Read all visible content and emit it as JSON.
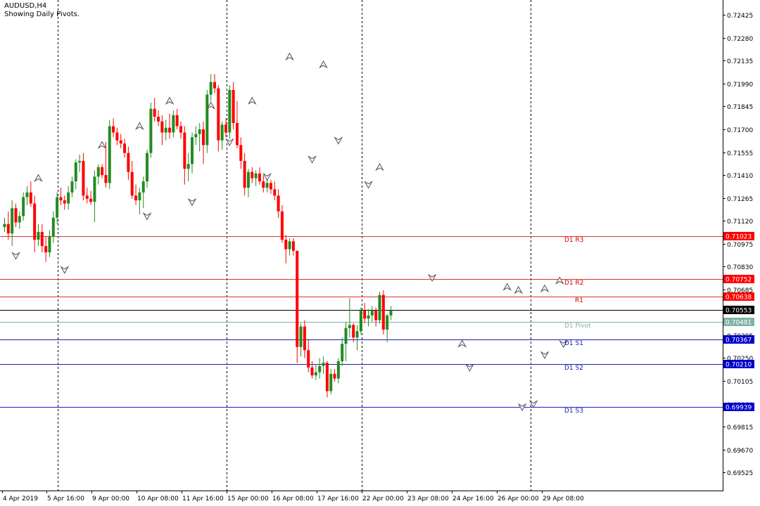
{
  "header": {
    "symbol": "AUDUSD,H4",
    "subtitle": "Showing Daily Pivots."
  },
  "colors": {
    "background": "#ffffff",
    "bull": "#228b22",
    "bear": "#ff0000",
    "resistance_line": "#e03030",
    "support_line": "#1a1acc",
    "pivot_line": "#7fb2a5",
    "price_line": "#000000",
    "grid_separator": "#000000",
    "resistance_label_bg": "#ff0000",
    "support_label_bg": "#0000cc",
    "pivot_label_bg": "#7fb2a5",
    "price_label_bg": "#000000",
    "fractal": "#505050"
  },
  "chart_data": {
    "type": "candlestick",
    "symbol": "AUDUSD",
    "timeframe": "H4",
    "ylim": [
      0.6941,
      0.7252
    ],
    "price_ticks": [
      "0.72425",
      "0.72280",
      "0.72135",
      "0.71990",
      "0.71845",
      "0.71700",
      "0.71555",
      "0.71410",
      "0.71265",
      "0.71120",
      "0.70975",
      "0.70830",
      "0.70685",
      "0.70395",
      "0.70250",
      "0.70105",
      "0.69960",
      "0.69815",
      "0.69670",
      "0.69525"
    ],
    "time_labels": [
      "4 Apr 2019",
      "5 Apr 16:00",
      "9 Apr 00:00",
      "10 Apr 08:00",
      "11 Apr 16:00",
      "15 Apr 00:00",
      "16 Apr 08:00",
      "17 Apr 16:00",
      "22 Apr 00:00",
      "23 Apr 08:00",
      "24 Apr 16:00",
      "26 Apr 00:00",
      "29 Apr 08:00"
    ],
    "day_separator_after_labels": [
      "5 Apr 16:00",
      "11 Apr 16:00",
      "17 Apr 16:00",
      "26 Apr 00:00"
    ],
    "current_price": "0.70553",
    "pivot_levels": [
      {
        "name": "D1 R3",
        "price": 0.71023,
        "label": "0.71023",
        "kind": "resistance"
      },
      {
        "name": "D1 R2",
        "price": 0.70752,
        "label": "0.70752",
        "kind": "resistance"
      },
      {
        "name": "R1",
        "price": 0.70638,
        "label": "0.70638",
        "kind": "resistance"
      },
      {
        "name": "D1 Pivot",
        "price": 0.70481,
        "label": "0.70481",
        "kind": "pivot"
      },
      {
        "name": "D1 S1",
        "price": 0.70367,
        "label": "0.70367",
        "kind": "support"
      },
      {
        "name": "D1 S2",
        "price": 0.7021,
        "label": "0.70210",
        "kind": "support"
      },
      {
        "name": "D1 S3",
        "price": 0.69939,
        "label": "0.69939",
        "kind": "support"
      }
    ],
    "candles": [
      [
        0.7108,
        0.7114,
        0.7105,
        0.711
      ],
      [
        0.711,
        0.7118,
        0.71,
        0.7104
      ],
      [
        0.7104,
        0.7125,
        0.7096,
        0.712
      ],
      [
        0.712,
        0.7123,
        0.7108,
        0.7111
      ],
      [
        0.7111,
        0.7118,
        0.7107,
        0.7115
      ],
      [
        0.7115,
        0.713,
        0.7112,
        0.7127
      ],
      [
        0.7127,
        0.7134,
        0.7122,
        0.713
      ],
      [
        0.713,
        0.7137,
        0.7121,
        0.7123
      ],
      [
        0.7123,
        0.7128,
        0.7092,
        0.71
      ],
      [
        0.71,
        0.711,
        0.7096,
        0.7105
      ],
      [
        0.7105,
        0.711,
        0.7092,
        0.7096
      ],
      [
        0.7096,
        0.7102,
        0.7086,
        0.7092
      ],
      [
        0.7092,
        0.7106,
        0.7089,
        0.7102
      ],
      [
        0.7102,
        0.7118,
        0.7098,
        0.7114
      ],
      [
        0.7114,
        0.713,
        0.711,
        0.7127
      ],
      [
        0.7127,
        0.7133,
        0.7122,
        0.7125
      ],
      [
        0.7125,
        0.7128,
        0.7119,
        0.7123
      ],
      [
        0.7123,
        0.7134,
        0.7119,
        0.713
      ],
      [
        0.713,
        0.714,
        0.7127,
        0.7137
      ],
      [
        0.7137,
        0.7151,
        0.7132,
        0.7149
      ],
      [
        0.7149,
        0.7154,
        0.7143,
        0.715
      ],
      [
        0.715,
        0.7155,
        0.7125,
        0.7128
      ],
      [
        0.7128,
        0.7133,
        0.7123,
        0.7126
      ],
      [
        0.7126,
        0.7131,
        0.7122,
        0.7124
      ],
      [
        0.7124,
        0.7144,
        0.7111,
        0.714
      ],
      [
        0.714,
        0.7148,
        0.7135,
        0.7146
      ],
      [
        0.7146,
        0.7148,
        0.7139,
        0.7141
      ],
      [
        0.7141,
        0.7162,
        0.7133,
        0.7136
      ],
      [
        0.7136,
        0.7176,
        0.7132,
        0.7172
      ],
      [
        0.7172,
        0.7177,
        0.7165,
        0.7168
      ],
      [
        0.7168,
        0.7171,
        0.716,
        0.7163
      ],
      [
        0.7163,
        0.7167,
        0.7158,
        0.7161
      ],
      [
        0.7161,
        0.7164,
        0.7152,
        0.7155
      ],
      [
        0.7155,
        0.7159,
        0.7138,
        0.7143
      ],
      [
        0.7143,
        0.715,
        0.7126,
        0.7128
      ],
      [
        0.7128,
        0.7135,
        0.7122,
        0.7125
      ],
      [
        0.7125,
        0.7133,
        0.7116,
        0.713
      ],
      [
        0.713,
        0.714,
        0.712,
        0.7137
      ],
      [
        0.7137,
        0.7157,
        0.7133,
        0.7155
      ],
      [
        0.7155,
        0.7187,
        0.7152,
        0.7183
      ],
      [
        0.7183,
        0.719,
        0.7175,
        0.7178
      ],
      [
        0.7178,
        0.7182,
        0.7172,
        0.7175
      ],
      [
        0.7175,
        0.7179,
        0.716,
        0.7168
      ],
      [
        0.7168,
        0.7176,
        0.7163,
        0.7171
      ],
      [
        0.7171,
        0.718,
        0.7164,
        0.7168
      ],
      [
        0.7168,
        0.7182,
        0.7165,
        0.7179
      ],
      [
        0.7179,
        0.7183,
        0.717,
        0.7172
      ],
      [
        0.7172,
        0.7175,
        0.7164,
        0.7168
      ],
      [
        0.7168,
        0.7172,
        0.7135,
        0.7145
      ],
      [
        0.7145,
        0.7155,
        0.7137,
        0.7148
      ],
      [
        0.7148,
        0.7168,
        0.7142,
        0.7165
      ],
      [
        0.7165,
        0.7172,
        0.716,
        0.7167
      ],
      [
        0.7167,
        0.7174,
        0.7156,
        0.717
      ],
      [
        0.717,
        0.7175,
        0.7148,
        0.716
      ],
      [
        0.716,
        0.7195,
        0.7155,
        0.7192
      ],
      [
        0.7192,
        0.7205,
        0.7188,
        0.72
      ],
      [
        0.72,
        0.7205,
        0.7193,
        0.7196
      ],
      [
        0.7196,
        0.7198,
        0.7156,
        0.7163
      ],
      [
        0.7163,
        0.7175,
        0.7157,
        0.7173
      ],
      [
        0.7173,
        0.7177,
        0.7165,
        0.7168
      ],
      [
        0.7168,
        0.7198,
        0.7164,
        0.7195
      ],
      [
        0.7195,
        0.72,
        0.717,
        0.7174
      ],
      [
        0.7174,
        0.7188,
        0.7158,
        0.716
      ],
      [
        0.716,
        0.7165,
        0.7145,
        0.715
      ],
      [
        0.715,
        0.7155,
        0.7128,
        0.7133
      ],
      [
        0.7133,
        0.7145,
        0.7127,
        0.7143
      ],
      [
        0.7143,
        0.7146,
        0.7136,
        0.7139
      ],
      [
        0.7139,
        0.7144,
        0.7134,
        0.7142
      ],
      [
        0.7142,
        0.7146,
        0.7135,
        0.7137
      ],
      [
        0.7137,
        0.7141,
        0.713,
        0.7133
      ],
      [
        0.7133,
        0.7139,
        0.713,
        0.7136
      ],
      [
        0.7136,
        0.7138,
        0.7129,
        0.7132
      ],
      [
        0.7132,
        0.7137,
        0.7125,
        0.7128
      ],
      [
        0.7128,
        0.7132,
        0.7114,
        0.7118
      ],
      [
        0.7118,
        0.7122,
        0.7098,
        0.71
      ],
      [
        0.71,
        0.7103,
        0.7085,
        0.7094
      ],
      [
        0.7094,
        0.7101,
        0.709,
        0.7099
      ],
      [
        0.7099,
        0.7101,
        0.709,
        0.7093
      ],
      [
        0.7093,
        0.7093,
        0.7022,
        0.7032
      ],
      [
        0.7032,
        0.7047,
        0.7026,
        0.7045
      ],
      [
        0.7045,
        0.7049,
        0.7025,
        0.703
      ],
      [
        0.703,
        0.7037,
        0.7016,
        0.7019
      ],
      [
        0.7019,
        0.7023,
        0.7012,
        0.7014
      ],
      [
        0.7014,
        0.7021,
        0.7011,
        0.7016
      ],
      [
        0.7016,
        0.7025,
        0.7012,
        0.702
      ],
      [
        0.702,
        0.7026,
        0.7015,
        0.7022
      ],
      [
        0.7022,
        0.7023,
        0.7,
        0.7004
      ],
      [
        0.7004,
        0.7018,
        0.7002,
        0.7015
      ],
      [
        0.7015,
        0.7018,
        0.701,
        0.7012
      ],
      [
        0.7012,
        0.7025,
        0.7009,
        0.7023
      ],
      [
        0.7023,
        0.7038,
        0.702,
        0.7034
      ],
      [
        0.7034,
        0.7048,
        0.7023,
        0.7044
      ],
      [
        0.7044,
        0.7063,
        0.7038,
        0.7046
      ],
      [
        0.7046,
        0.7047,
        0.7035,
        0.7038
      ],
      [
        0.7038,
        0.7046,
        0.703,
        0.7042
      ],
      [
        0.7042,
        0.7057,
        0.704,
        0.7055
      ],
      [
        0.7055,
        0.706,
        0.7047,
        0.705
      ],
      [
        0.705,
        0.7056,
        0.7045,
        0.7052
      ],
      [
        0.7052,
        0.7058,
        0.7048,
        0.7055
      ],
      [
        0.7055,
        0.7057,
        0.7045,
        0.7049
      ],
      [
        0.7049,
        0.7067,
        0.7047,
        0.7065
      ],
      [
        0.7065,
        0.7068,
        0.704,
        0.7043
      ],
      [
        0.7043,
        0.7053,
        0.7035,
        0.7052
      ],
      [
        0.7052,
        0.7058,
        0.7049,
        0.7055
      ]
    ],
    "up_fractals": [
      [
        9,
        0.7139
      ],
      [
        26,
        0.716
      ],
      [
        36,
        0.7172
      ],
      [
        44,
        0.7188
      ],
      [
        55,
        0.7185
      ],
      [
        66,
        0.7188
      ],
      [
        76,
        0.7216
      ],
      [
        85,
        0.7211
      ],
      [
        100,
        0.7146
      ],
      [
        122,
        0.7034
      ],
      [
        134,
        0.707
      ],
      [
        137,
        0.7068
      ],
      [
        144,
        0.7069
      ],
      [
        148,
        0.7074
      ]
    ],
    "down_fractals": [
      [
        3,
        0.709
      ],
      [
        16,
        0.7081
      ],
      [
        38,
        0.7115
      ],
      [
        50,
        0.7124
      ],
      [
        60,
        0.7162
      ],
      [
        70,
        0.714
      ],
      [
        82,
        0.7151
      ],
      [
        89,
        0.7163
      ],
      [
        97,
        0.7135
      ],
      [
        114,
        0.7076
      ],
      [
        124,
        0.7019
      ],
      [
        138,
        0.6994
      ],
      [
        141,
        0.6996
      ],
      [
        144,
        0.7027
      ],
      [
        149,
        0.7034
      ]
    ]
  }
}
